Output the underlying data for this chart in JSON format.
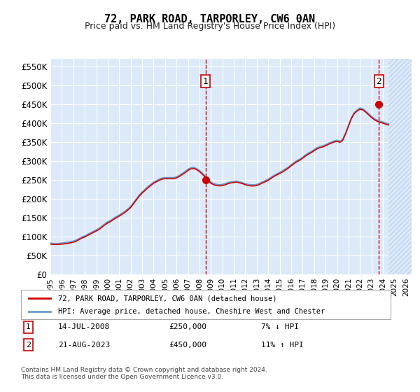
{
  "title": "72, PARK ROAD, TARPORLEY, CW6 0AN",
  "subtitle": "Price paid vs. HM Land Registry's House Price Index (HPI)",
  "ylabel": "",
  "xlabel": "",
  "ylim": [
    0,
    570000
  ],
  "yticks": [
    0,
    50000,
    100000,
    150000,
    200000,
    250000,
    300000,
    350000,
    400000,
    450000,
    500000,
    550000
  ],
  "ytick_labels": [
    "£0",
    "£50K",
    "£100K",
    "£150K",
    "£200K",
    "£250K",
    "£300K",
    "£350K",
    "£400K",
    "£450K",
    "£500K",
    "£550K"
  ],
  "xlim_start": 1995.0,
  "xlim_end": 2026.5,
  "xticks": [
    1995,
    1996,
    1997,
    1998,
    1999,
    2000,
    2001,
    2002,
    2003,
    2004,
    2005,
    2006,
    2007,
    2008,
    2009,
    2010,
    2011,
    2012,
    2013,
    2014,
    2015,
    2016,
    2017,
    2018,
    2019,
    2020,
    2021,
    2022,
    2023,
    2024,
    2025,
    2026
  ],
  "background_color": "#dce9f8",
  "hatch_color": "#c0d4ef",
  "grid_color": "#ffffff",
  "line_color_property": "#cc0000",
  "line_color_hpi": "#6699cc",
  "sale1_x": 2008.54,
  "sale1_y": 250000,
  "sale2_x": 2023.65,
  "sale2_y": 450000,
  "legend_label1": "72, PARK ROAD, TARPORLEY, CW6 0AN (detached house)",
  "legend_label2": "HPI: Average price, detached house, Cheshire West and Chester",
  "annotation1_date": "14-JUL-2008",
  "annotation1_price": "£250,000",
  "annotation1_hpi": "7% ↓ HPI",
  "annotation2_date": "21-AUG-2023",
  "annotation2_price": "£450,000",
  "annotation2_hpi": "11% ↑ HPI",
  "footer_text": "Contains HM Land Registry data © Crown copyright and database right 2024.\nThis data is licensed under the Open Government Licence v3.0.",
  "hpi_data_x": [
    1995.0,
    1995.25,
    1995.5,
    1995.75,
    1996.0,
    1996.25,
    1996.5,
    1996.75,
    1997.0,
    1997.25,
    1997.5,
    1997.75,
    1998.0,
    1998.25,
    1998.5,
    1998.75,
    1999.0,
    1999.25,
    1999.5,
    1999.75,
    2000.0,
    2000.25,
    2000.5,
    2000.75,
    2001.0,
    2001.25,
    2001.5,
    2001.75,
    2002.0,
    2002.25,
    2002.5,
    2002.75,
    2003.0,
    2003.25,
    2003.5,
    2003.75,
    2004.0,
    2004.25,
    2004.5,
    2004.75,
    2005.0,
    2005.25,
    2005.5,
    2005.75,
    2006.0,
    2006.25,
    2006.5,
    2006.75,
    2007.0,
    2007.25,
    2007.5,
    2007.75,
    2008.0,
    2008.25,
    2008.5,
    2008.75,
    2009.0,
    2009.25,
    2009.5,
    2009.75,
    2010.0,
    2010.25,
    2010.5,
    2010.75,
    2011.0,
    2011.25,
    2011.5,
    2011.75,
    2012.0,
    2012.25,
    2012.5,
    2012.75,
    2013.0,
    2013.25,
    2013.5,
    2013.75,
    2014.0,
    2014.25,
    2014.5,
    2014.75,
    2015.0,
    2015.25,
    2015.5,
    2015.75,
    2016.0,
    2016.25,
    2016.5,
    2016.75,
    2017.0,
    2017.25,
    2017.5,
    2017.75,
    2018.0,
    2018.25,
    2018.5,
    2018.75,
    2019.0,
    2019.25,
    2019.5,
    2019.75,
    2020.0,
    2020.25,
    2020.5,
    2020.75,
    2021.0,
    2021.25,
    2021.5,
    2021.75,
    2022.0,
    2022.25,
    2022.5,
    2022.75,
    2023.0,
    2023.25,
    2023.5,
    2023.75,
    2024.0,
    2024.25,
    2024.5
  ],
  "hpi_data_y": [
    83000,
    82000,
    81500,
    82000,
    83000,
    84000,
    85000,
    86500,
    88000,
    91000,
    95000,
    99000,
    102000,
    106000,
    110000,
    114000,
    118000,
    122000,
    128000,
    134000,
    139000,
    143000,
    148000,
    153000,
    157000,
    162000,
    167000,
    173000,
    180000,
    190000,
    200000,
    210000,
    218000,
    225000,
    232000,
    238000,
    244000,
    248000,
    252000,
    255000,
    256000,
    256000,
    256000,
    256000,
    258000,
    262000,
    267000,
    272000,
    278000,
    282000,
    283000,
    280000,
    275000,
    268000,
    260000,
    252000,
    244000,
    240000,
    238000,
    237000,
    238000,
    240000,
    243000,
    245000,
    246000,
    247000,
    245000,
    243000,
    240000,
    238000,
    237000,
    237000,
    238000,
    241000,
    245000,
    248000,
    252000,
    257000,
    262000,
    266000,
    270000,
    274000,
    279000,
    284000,
    290000,
    296000,
    301000,
    305000,
    310000,
    316000,
    321000,
    325000,
    330000,
    335000,
    338000,
    340000,
    343000,
    347000,
    350000,
    353000,
    355000,
    352000,
    358000,
    375000,
    395000,
    415000,
    428000,
    435000,
    440000,
    438000,
    432000,
    425000,
    418000,
    412000,
    408000,
    405000,
    403000,
    400000,
    398000
  ],
  "prop_data_x": [
    1995.0,
    1995.25,
    1995.5,
    1995.75,
    1996.0,
    1996.25,
    1996.5,
    1996.75,
    1997.0,
    1997.25,
    1997.5,
    1997.75,
    1998.0,
    1998.25,
    1998.5,
    1998.75,
    1999.0,
    1999.25,
    1999.5,
    1999.75,
    2000.0,
    2000.25,
    2000.5,
    2000.75,
    2001.0,
    2001.25,
    2001.5,
    2001.75,
    2002.0,
    2002.25,
    2002.5,
    2002.75,
    2003.0,
    2003.25,
    2003.5,
    2003.75,
    2004.0,
    2004.25,
    2004.5,
    2004.75,
    2005.0,
    2005.25,
    2005.5,
    2005.75,
    2006.0,
    2006.25,
    2006.5,
    2006.75,
    2007.0,
    2007.25,
    2007.5,
    2007.75,
    2008.0,
    2008.25,
    2008.5,
    2008.75,
    2009.0,
    2009.25,
    2009.5,
    2009.75,
    2010.0,
    2010.25,
    2010.5,
    2010.75,
    2011.0,
    2011.25,
    2011.5,
    2011.75,
    2012.0,
    2012.25,
    2012.5,
    2012.75,
    2013.0,
    2013.25,
    2013.5,
    2013.75,
    2014.0,
    2014.25,
    2014.5,
    2014.75,
    2015.0,
    2015.25,
    2015.5,
    2015.75,
    2016.0,
    2016.25,
    2016.5,
    2016.75,
    2017.0,
    2017.25,
    2017.5,
    2017.75,
    2018.0,
    2018.25,
    2018.5,
    2018.75,
    2019.0,
    2019.25,
    2019.5,
    2019.75,
    2020.0,
    2020.25,
    2020.5,
    2020.75,
    2021.0,
    2021.25,
    2021.5,
    2021.75,
    2022.0,
    2022.25,
    2022.5,
    2022.75,
    2023.0,
    2023.25,
    2023.5,
    2023.75,
    2024.0,
    2024.25,
    2024.5
  ],
  "prop_data_y": [
    80000,
    79500,
    79000,
    79500,
    80000,
    81000,
    82000,
    83500,
    85000,
    88000,
    92000,
    96000,
    99000,
    103000,
    107000,
    111000,
    115000,
    119000,
    125000,
    131000,
    136000,
    140000,
    145000,
    150000,
    154000,
    159000,
    164000,
    170000,
    177000,
    187000,
    197000,
    207000,
    215000,
    222000,
    229000,
    235000,
    241000,
    245000,
    249000,
    252000,
    253000,
    253000,
    253000,
    253000,
    255000,
    259000,
    264000,
    269000,
    275000,
    279000,
    280000,
    277000,
    272000,
    265000,
    257000,
    249000,
    241000,
    237000,
    235000,
    234000,
    235000,
    237000,
    240000,
    242000,
    243000,
    244000,
    242000,
    240000,
    237000,
    235000,
    234000,
    234000,
    235000,
    238000,
    242000,
    245000,
    249000,
    254000,
    259000,
    263000,
    267000,
    271000,
    276000,
    281000,
    287000,
    293000,
    298000,
    302000,
    307000,
    313000,
    318000,
    322000,
    327000,
    332000,
    335000,
    337000,
    340000,
    344000,
    347000,
    350000,
    352000,
    349000,
    355000,
    372000,
    392000,
    412000,
    425000,
    432000,
    437000,
    435000,
    429000,
    422000,
    415000,
    409000,
    405000,
    402000,
    400000,
    397000,
    395000
  ]
}
